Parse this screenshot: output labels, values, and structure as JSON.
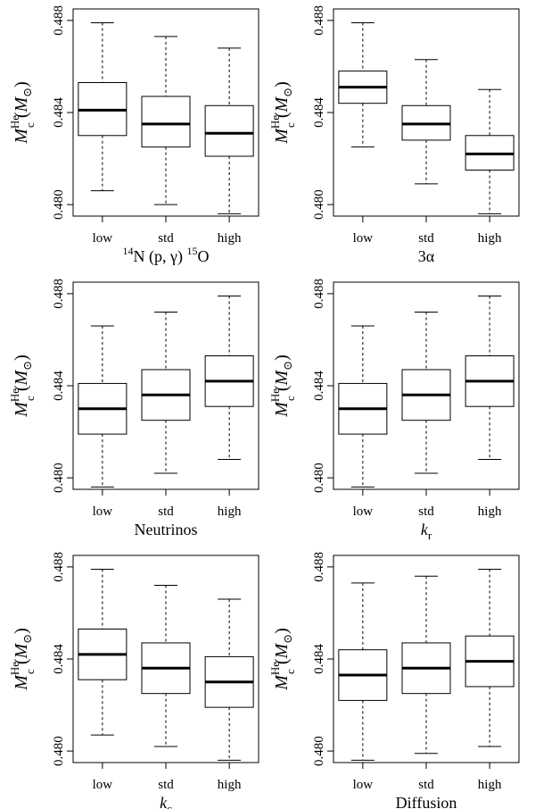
{
  "chart_data": [
    {
      "type": "box",
      "xlabel": "14N (p, γ) 15O",
      "xlabel_parts": {
        "sup1": "14",
        "t1": "N (p, γ) ",
        "sup2": "15",
        "t2": "O"
      },
      "ylabel": "M_c^He (M⊙)",
      "ylim": [
        0.4795,
        0.4885
      ],
      "yticks": [
        0.48,
        0.484,
        0.488
      ],
      "ytick_labels": [
        "0.480",
        "0.484",
        "0.488"
      ],
      "categories": [
        "low",
        "std",
        "high"
      ],
      "boxes": [
        {
          "min": 0.4806,
          "q1": 0.483,
          "median": 0.4841,
          "q3": 0.4853,
          "max": 0.4879
        },
        {
          "min": 0.48,
          "q1": 0.4825,
          "median": 0.4835,
          "q3": 0.4847,
          "max": 0.4873
        },
        {
          "min": 0.4796,
          "q1": 0.4821,
          "median": 0.4831,
          "q3": 0.4843,
          "max": 0.4868
        }
      ]
    },
    {
      "type": "box",
      "xlabel": "3α",
      "ylabel": "M_c^He (M⊙)",
      "ylim": [
        0.4795,
        0.4885
      ],
      "yticks": [
        0.48,
        0.484,
        0.488
      ],
      "ytick_labels": [
        "0.480",
        "0.484",
        "0.488"
      ],
      "categories": [
        "low",
        "std",
        "high"
      ],
      "boxes": [
        {
          "min": 0.4825,
          "q1": 0.4844,
          "median": 0.4851,
          "q3": 0.4858,
          "max": 0.4879
        },
        {
          "min": 0.4809,
          "q1": 0.4828,
          "median": 0.4835,
          "q3": 0.4843,
          "max": 0.4863
        },
        {
          "min": 0.4796,
          "q1": 0.4815,
          "median": 0.4822,
          "q3": 0.483,
          "max": 0.485
        }
      ]
    },
    {
      "type": "box",
      "xlabel": "Neutrinos",
      "ylabel": "M_c^He (M⊙)",
      "ylim": [
        0.4795,
        0.4885
      ],
      "yticks": [
        0.48,
        0.484,
        0.488
      ],
      "ytick_labels": [
        "0.480",
        "0.484",
        "0.488"
      ],
      "categories": [
        "low",
        "std",
        "high"
      ],
      "boxes": [
        {
          "min": 0.4796,
          "q1": 0.4819,
          "median": 0.483,
          "q3": 0.4841,
          "max": 0.4866
        },
        {
          "min": 0.4802,
          "q1": 0.4825,
          "median": 0.4836,
          "q3": 0.4847,
          "max": 0.4872
        },
        {
          "min": 0.4808,
          "q1": 0.4831,
          "median": 0.4842,
          "q3": 0.4853,
          "max": 0.4879
        }
      ]
    },
    {
      "type": "box",
      "xlabel": "k_r",
      "xlabel_parts": {
        "main": "k",
        "sub": "r"
      },
      "ylabel": "M_c^He (M⊙)",
      "ylim": [
        0.4795,
        0.4885
      ],
      "yticks": [
        0.48,
        0.484,
        0.488
      ],
      "ytick_labels": [
        "0.480",
        "0.484",
        "0.488"
      ],
      "categories": [
        "low",
        "std",
        "high"
      ],
      "boxes": [
        {
          "min": 0.4796,
          "q1": 0.4819,
          "median": 0.483,
          "q3": 0.4841,
          "max": 0.4866
        },
        {
          "min": 0.4802,
          "q1": 0.4825,
          "median": 0.4836,
          "q3": 0.4847,
          "max": 0.4872
        },
        {
          "min": 0.4808,
          "q1": 0.4831,
          "median": 0.4842,
          "q3": 0.4853,
          "max": 0.4879
        }
      ]
    },
    {
      "type": "box",
      "xlabel": "k_c",
      "xlabel_parts": {
        "main": "k",
        "sub": "c"
      },
      "ylabel": "M_c^He (M⊙)",
      "ylim": [
        0.4795,
        0.4885
      ],
      "yticks": [
        0.48,
        0.484,
        0.488
      ],
      "ytick_labels": [
        "0.480",
        "0.484",
        "0.488"
      ],
      "categories": [
        "low",
        "std",
        "high"
      ],
      "boxes": [
        {
          "min": 0.4807,
          "q1": 0.4831,
          "median": 0.4842,
          "q3": 0.4853,
          "max": 0.4879
        },
        {
          "min": 0.4802,
          "q1": 0.4825,
          "median": 0.4836,
          "q3": 0.4847,
          "max": 0.4872
        },
        {
          "min": 0.4796,
          "q1": 0.4819,
          "median": 0.483,
          "q3": 0.4841,
          "max": 0.4866
        }
      ]
    },
    {
      "type": "box",
      "xlabel": "Diffusion",
      "ylabel": "M_c^He (M⊙)",
      "ylim": [
        0.4795,
        0.4885
      ],
      "yticks": [
        0.48,
        0.484,
        0.488
      ],
      "ytick_labels": [
        "0.480",
        "0.484",
        "0.488"
      ],
      "categories": [
        "low",
        "std",
        "high"
      ],
      "boxes": [
        {
          "min": 0.4796,
          "q1": 0.4822,
          "median": 0.4833,
          "q3": 0.4844,
          "max": 0.4873
        },
        {
          "min": 0.4799,
          "q1": 0.4825,
          "median": 0.4836,
          "q3": 0.4847,
          "max": 0.4876
        },
        {
          "min": 0.4802,
          "q1": 0.4828,
          "median": 0.4839,
          "q3": 0.485,
          "max": 0.4879
        }
      ]
    }
  ],
  "labels": {
    "ylabel": {
      "main": "M",
      "sub": "c",
      "sup": "He",
      "unit_main": "M",
      "unit_sub": "⊙"
    }
  }
}
